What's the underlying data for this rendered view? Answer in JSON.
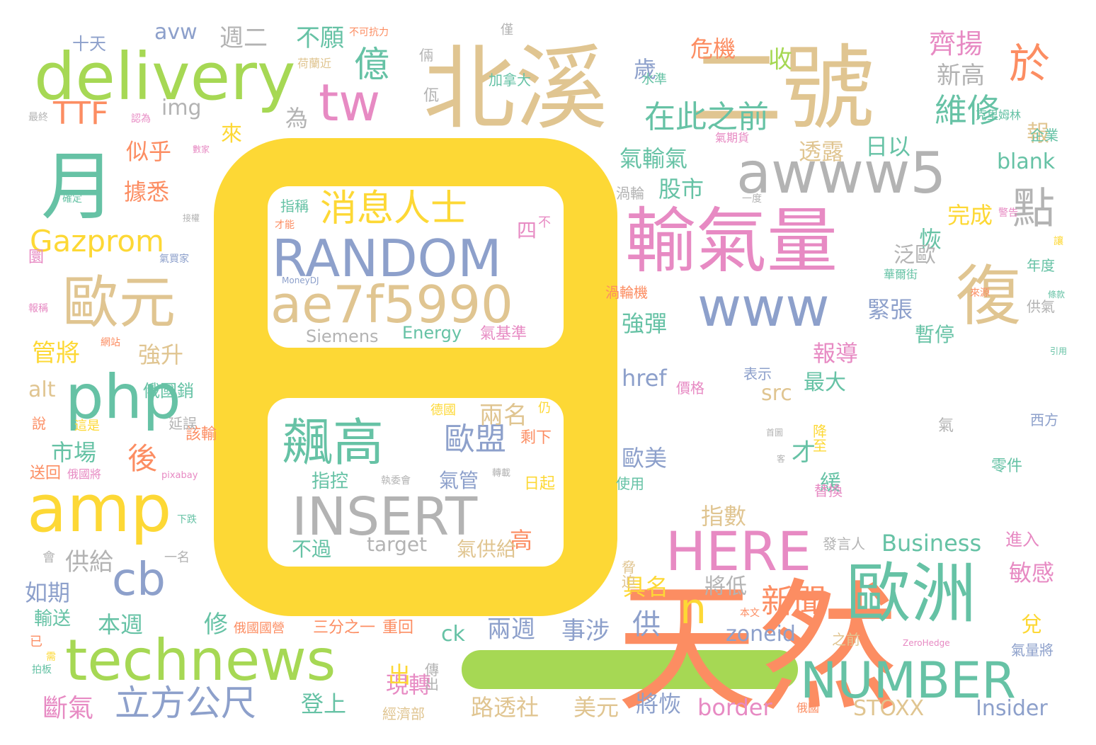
{
  "palette": {
    "yellow": "#fdd835",
    "orange": "#fc8d62",
    "tan": "#e0c591",
    "green": "#66c2a5",
    "blue": "#8da0cb",
    "pink": "#e78ac3",
    "lime": "#a6d854",
    "gray": "#b3b3b3"
  },
  "words": [
    {
      "text": "天然",
      "color": "orange"
    },
    {
      "text": "北溪",
      "color": "tan"
    },
    {
      "text": "二號",
      "color": "tan"
    },
    {
      "text": "輸氣量",
      "color": "pink"
    },
    {
      "text": "月",
      "color": "green"
    },
    {
      "text": "歐洲",
      "color": "green"
    },
    {
      "text": "delivery",
      "color": "lime"
    },
    {
      "text": "amp",
      "color": "yellow"
    },
    {
      "text": "php",
      "color": "green"
    },
    {
      "text": "technews",
      "color": "lime"
    },
    {
      "text": "awww5",
      "color": "gray"
    },
    {
      "text": "復",
      "color": "tan"
    },
    {
      "text": "歐元",
      "color": "tan"
    },
    {
      "text": "tw",
      "color": "pink"
    },
    {
      "text": "www",
      "color": "blue"
    },
    {
      "text": "HERE",
      "color": "pink"
    },
    {
      "text": "NUMBER",
      "color": "green"
    },
    {
      "text": "RANDOM",
      "color": "blue"
    },
    {
      "text": "ae7f5990",
      "color": "tan"
    },
    {
      "text": "INSERT",
      "color": "gray"
    },
    {
      "text": "飆高",
      "color": "green"
    },
    {
      "text": "cb",
      "color": "blue"
    },
    {
      "text": "n",
      "color": "yellow"
    },
    {
      "text": "點",
      "color": "gray"
    },
    {
      "text": "消息人士",
      "color": "yellow"
    },
    {
      "text": "於",
      "color": "orange"
    },
    {
      "text": "在此之前",
      "color": "green"
    },
    {
      "text": "維修",
      "color": "green"
    },
    {
      "text": "立方公尺",
      "color": "blue"
    },
    {
      "text": "Gazprom",
      "color": "yellow"
    },
    {
      "text": "新聞",
      "color": "orange"
    },
    {
      "text": "歐盟",
      "color": "blue"
    },
    {
      "text": "億",
      "color": "green"
    },
    {
      "text": "齊揚",
      "color": "pink"
    },
    {
      "text": "TTF",
      "color": "orange"
    },
    {
      "text": "後",
      "color": "orange"
    },
    {
      "text": "Business",
      "color": "green"
    },
    {
      "text": "Insider",
      "color": "blue"
    },
    {
      "text": "STOXX",
      "color": "tan"
    },
    {
      "text": "border",
      "color": "pink"
    },
    {
      "text": "zoneid",
      "color": "blue"
    },
    {
      "text": "target",
      "color": "gray"
    },
    {
      "text": "img",
      "color": "gray"
    },
    {
      "text": "href",
      "color": "blue"
    },
    {
      "text": "src",
      "color": "tan"
    },
    {
      "text": "blank",
      "color": "green"
    },
    {
      "text": "avw",
      "color": "blue"
    },
    {
      "text": "alt",
      "color": "tan"
    },
    {
      "text": "ck",
      "color": "green"
    },
    {
      "text": "週二",
      "color": "gray"
    },
    {
      "text": "不願",
      "color": "green"
    },
    {
      "text": "收",
      "color": "lime"
    },
    {
      "text": "危機",
      "color": "orange"
    },
    {
      "text": "歲",
      "color": "blue"
    },
    {
      "text": "來",
      "color": "yellow"
    },
    {
      "text": "為",
      "color": "gray"
    },
    {
      "text": "新高",
      "color": "gray"
    },
    {
      "text": "報",
      "color": "tan"
    },
    {
      "text": "透露",
      "color": "tan"
    },
    {
      "text": "日以",
      "color": "green"
    },
    {
      "text": "氣輸氣",
      "color": "green"
    },
    {
      "text": "股市",
      "color": "green"
    },
    {
      "text": "完成",
      "color": "yellow"
    },
    {
      "text": "恢",
      "color": "green"
    },
    {
      "text": "泛歐",
      "color": "gray"
    },
    {
      "text": "緊張",
      "color": "blue"
    },
    {
      "text": "強彈",
      "color": "green"
    },
    {
      "text": "暫停",
      "color": "green"
    },
    {
      "text": "報導",
      "color": "pink"
    },
    {
      "text": "最大",
      "color": "green"
    },
    {
      "text": "才",
      "color": "green"
    },
    {
      "text": "緩",
      "color": "green"
    },
    {
      "text": "歐美",
      "color": "blue"
    },
    {
      "text": "兩名",
      "color": "tan"
    },
    {
      "text": "指數",
      "color": "tan"
    },
    {
      "text": "具名",
      "color": "yellow"
    },
    {
      "text": "將低",
      "color": "gray"
    },
    {
      "text": "供",
      "color": "blue"
    },
    {
      "text": "兩週",
      "color": "blue"
    },
    {
      "text": "事涉",
      "color": "blue"
    },
    {
      "text": "現轉",
      "color": "pink"
    },
    {
      "text": "出",
      "color": "yellow"
    },
    {
      "text": "路透社",
      "color": "tan"
    },
    {
      "text": "美元",
      "color": "tan"
    },
    {
      "text": "將恢",
      "color": "blue"
    },
    {
      "text": "登上",
      "color": "green"
    },
    {
      "text": "斷氣",
      "color": "pink"
    },
    {
      "text": "本週",
      "color": "green"
    },
    {
      "text": "修",
      "color": "green"
    },
    {
      "text": "市場",
      "color": "green"
    },
    {
      "text": "似乎",
      "color": "orange"
    },
    {
      "text": "據悉",
      "color": "orange"
    },
    {
      "text": "管將",
      "color": "yellow"
    },
    {
      "text": "強升",
      "color": "tan"
    },
    {
      "text": "供給",
      "color": "gray"
    },
    {
      "text": "如期",
      "color": "blue"
    },
    {
      "text": "輸送",
      "color": "green"
    },
    {
      "text": "敏感",
      "color": "pink"
    },
    {
      "text": "兌",
      "color": "yellow"
    },
    {
      "text": "進入",
      "color": "pink"
    },
    {
      "text": "十天",
      "color": "blue"
    },
    {
      "text": "高",
      "color": "orange"
    },
    {
      "text": "氣管",
      "color": "blue"
    },
    {
      "text": "氣供給",
      "color": "tan"
    },
    {
      "text": "指控",
      "color": "green"
    },
    {
      "text": "不過",
      "color": "green"
    },
    {
      "text": "四",
      "color": "pink"
    },
    {
      "text": "剩下",
      "color": "orange"
    },
    {
      "text": "日起",
      "color": "yellow"
    },
    {
      "text": "Siemens",
      "color": "gray"
    },
    {
      "text": "Energy",
      "color": "green"
    },
    {
      "text": "氣基準",
      "color": "pink"
    },
    {
      "text": "指稱",
      "color": "green"
    },
    {
      "text": "不可抗力",
      "color": "orange"
    },
    {
      "text": "荷蘭近",
      "color": "tan"
    },
    {
      "text": "加拿大",
      "color": "green"
    },
    {
      "text": "水準",
      "color": "green"
    },
    {
      "text": "佤",
      "color": "gray"
    },
    {
      "text": "倆",
      "color": "gray"
    },
    {
      "text": "僅",
      "color": "gray"
    },
    {
      "text": "俄國銷",
      "color": "green"
    },
    {
      "text": "MoneyDJ",
      "color": "blue"
    },
    {
      "text": "ZeroHedge",
      "color": "pink"
    },
    {
      "text": "pixabay",
      "color": "pink"
    },
    {
      "text": "俄國",
      "color": "orange"
    },
    {
      "text": "經濟部",
      "color": "tan"
    },
    {
      "text": "三分之一",
      "color": "orange"
    },
    {
      "text": "重回",
      "color": "orange"
    },
    {
      "text": "俄國國營",
      "color": "orange"
    },
    {
      "text": "傳出",
      "color": "gray"
    },
    {
      "text": "該輸",
      "color": "orange"
    },
    {
      "text": "延誤",
      "color": "gray"
    },
    {
      "text": "送回",
      "color": "orange"
    },
    {
      "text": "俄國將",
      "color": "pink"
    },
    {
      "text": "價格",
      "color": "pink"
    },
    {
      "text": "表示",
      "color": "blue"
    },
    {
      "text": "降至",
      "color": "yellow"
    },
    {
      "text": "替換",
      "color": "pink"
    },
    {
      "text": "零件",
      "color": "green"
    },
    {
      "text": "西方",
      "color": "blue"
    },
    {
      "text": "供氣",
      "color": "gray"
    },
    {
      "text": "引用",
      "color": "green"
    },
    {
      "text": "條款",
      "color": "green"
    },
    {
      "text": "來源",
      "color": "orange"
    },
    {
      "text": "年度",
      "color": "green"
    },
    {
      "text": "讓",
      "color": "yellow"
    },
    {
      "text": "華爾街",
      "color": "green"
    },
    {
      "text": "警告",
      "color": "pink"
    },
    {
      "text": "發言人",
      "color": "gray"
    },
    {
      "text": "脅迫",
      "color": "tan"
    },
    {
      "text": "使用",
      "color": "green"
    },
    {
      "text": "渦輪",
      "color": "gray"
    },
    {
      "text": "渦輪機",
      "color": "orange"
    },
    {
      "text": "一度",
      "color": "gray"
    },
    {
      "text": "氣期貨",
      "color": "pink"
    },
    {
      "text": "克里姆林",
      "color": "green"
    },
    {
      "text": "企業",
      "color": "green"
    },
    {
      "text": "氣量將",
      "color": "blue"
    },
    {
      "text": "之前",
      "color": "tan"
    },
    {
      "text": "本文",
      "color": "orange"
    },
    {
      "text": "首圖",
      "color": "gray"
    },
    {
      "text": "氣",
      "color": "gray"
    },
    {
      "text": "客",
      "color": "gray"
    },
    {
      "text": "數家",
      "color": "pink"
    },
    {
      "text": "確定",
      "color": "green"
    },
    {
      "text": "接權",
      "color": "gray"
    },
    {
      "text": "氣買家",
      "color": "blue"
    },
    {
      "text": "圜",
      "color": "pink"
    },
    {
      "text": "報稱",
      "color": "pink"
    },
    {
      "text": "網站",
      "color": "orange"
    },
    {
      "text": "說",
      "color": "orange"
    },
    {
      "text": "這是",
      "color": "yellow"
    },
    {
      "text": "下跌",
      "color": "green"
    },
    {
      "text": "一名",
      "color": "gray"
    },
    {
      "text": "會",
      "color": "gray"
    },
    {
      "text": "已",
      "color": "orange"
    },
    {
      "text": "拍板",
      "color": "green"
    },
    {
      "text": "需",
      "color": "yellow"
    },
    {
      "text": "最終",
      "color": "gray"
    },
    {
      "text": "認為",
      "color": "pink"
    },
    {
      "text": "才能",
      "color": "orange"
    },
    {
      "text": "不",
      "color": "pink"
    },
    {
      "text": "德國",
      "color": "yellow"
    },
    {
      "text": "仍",
      "color": "yellow"
    },
    {
      "text": "執委會",
      "color": "gray"
    },
    {
      "text": "轉載",
      "color": "gray"
    }
  ]
}
